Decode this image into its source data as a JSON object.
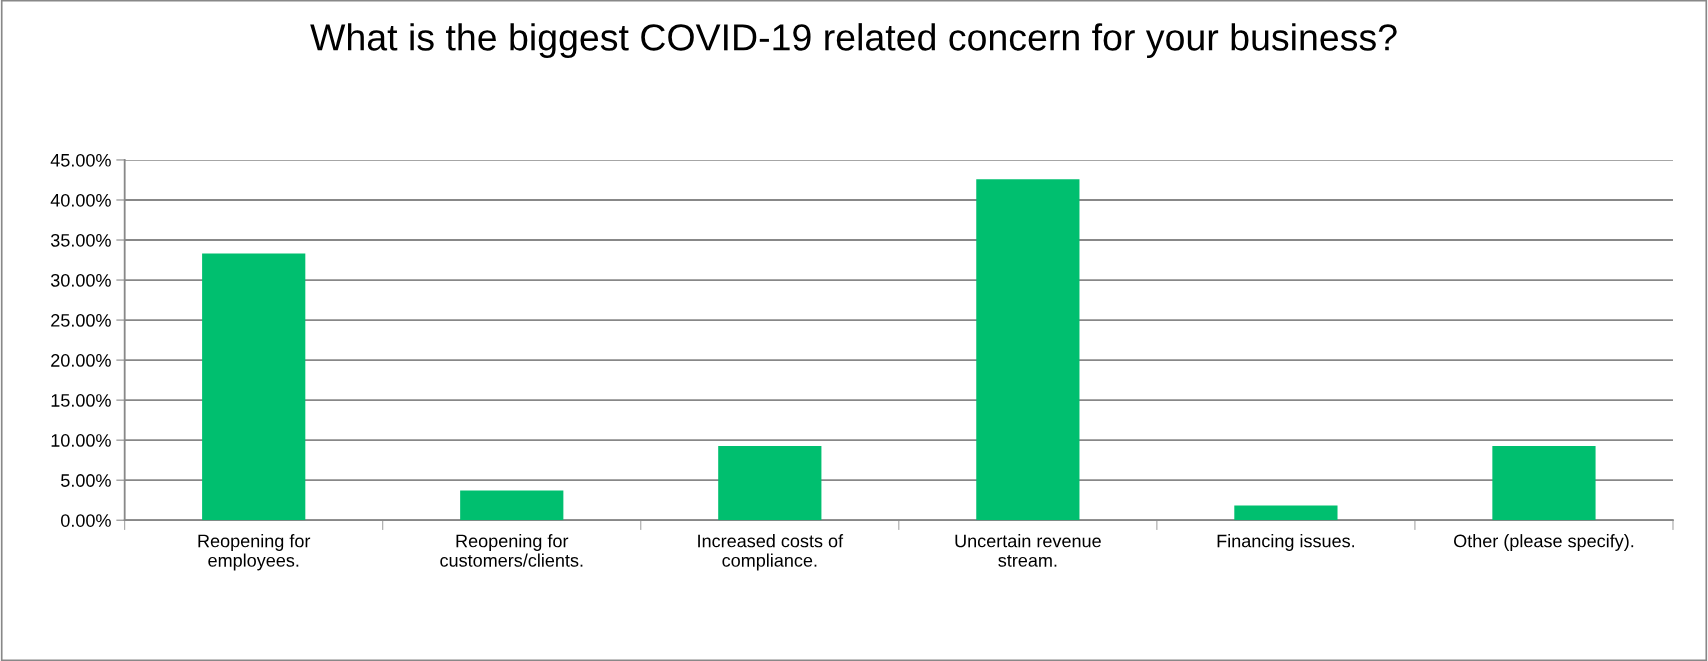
{
  "chart_data": {
    "type": "bar",
    "title": "What is the biggest COVID-19 related concern for your business?",
    "categories": [
      "Reopening for\nemployees.",
      "Reopening for\ncustomers/clients.",
      "Increased costs of\ncompliance.",
      "Uncertain revenue\nstream.",
      "Financing issues.",
      "Other (please specify)."
    ],
    "values": [
      33.33,
      3.7,
      9.26,
      42.59,
      1.85,
      9.26
    ],
    "color": "#00bf6f",
    "ylim": [
      0,
      45
    ],
    "yticks": [
      {
        "value": 0,
        "label": "0.00%"
      },
      {
        "value": 5,
        "label": "5.00%"
      },
      {
        "value": 10,
        "label": "10.00%"
      },
      {
        "value": 15,
        "label": "15.00%"
      },
      {
        "value": 20,
        "label": "20.00%"
      },
      {
        "value": 25,
        "label": "25.00%"
      },
      {
        "value": 30,
        "label": "30.00%"
      },
      {
        "value": 35,
        "label": "35.00%"
      },
      {
        "value": 40,
        "label": "40.00%"
      },
      {
        "value": 45,
        "label": "45.00%"
      }
    ],
    "grid": "y",
    "legend": false
  }
}
